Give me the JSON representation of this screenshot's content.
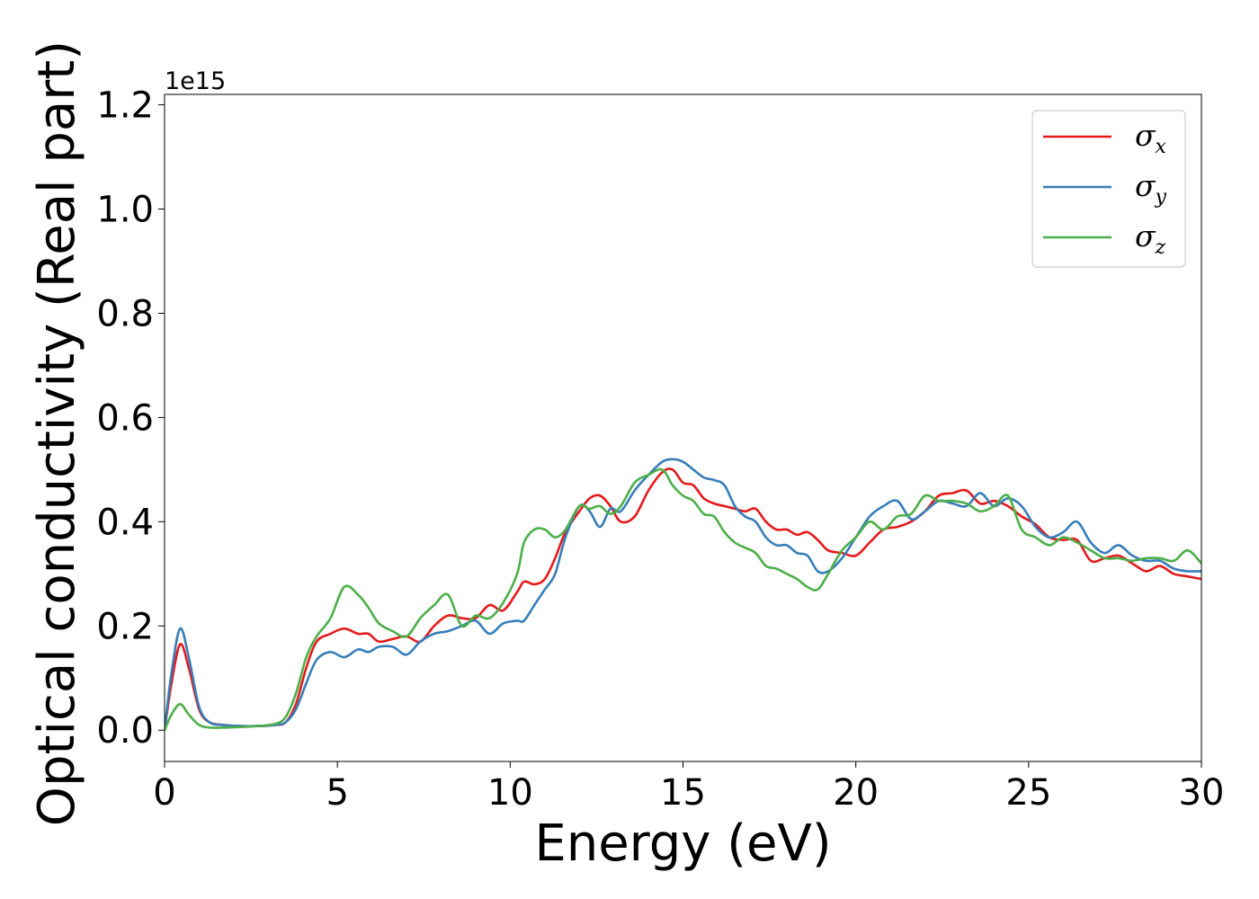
{
  "chart_data": {
    "type": "line",
    "title": "",
    "xlabel": "Energy (eV)",
    "ylabel": "Optical conductivity (Real part)",
    "y_offset_label": "1e15",
    "xlim": [
      0,
      30
    ],
    "ylim": [
      -0.06,
      1.22
    ],
    "xticks": [
      0,
      5,
      10,
      15,
      20,
      25,
      30
    ],
    "xtick_labels": [
      "0",
      "5",
      "10",
      "15",
      "20",
      "25",
      "30"
    ],
    "yticks": [
      0.0,
      0.2,
      0.4,
      0.6,
      0.8,
      1.0,
      1.2
    ],
    "ytick_labels": [
      "0.0",
      "0.2",
      "0.4",
      "0.6",
      "0.8",
      "1.0",
      "1.2"
    ],
    "grid": false,
    "legend_position": "top-right",
    "series": [
      {
        "name": "σx",
        "symbol": "σ",
        "sub": "x",
        "color": "#e41a1c",
        "x": [
          0,
          0.2,
          0.45,
          0.7,
          1.0,
          1.3,
          1.7,
          2.2,
          2.7,
          3.2,
          3.5,
          3.8,
          4.1,
          4.4,
          4.8,
          5.2,
          5.6,
          5.9,
          6.2,
          6.6,
          7.0,
          7.4,
          7.8,
          8.2,
          8.6,
          9.0,
          9.4,
          9.8,
          10.2,
          10.4,
          10.7,
          11.0,
          11.3,
          11.6,
          12.0,
          12.3,
          12.6,
          12.9,
          13.2,
          13.6,
          14.0,
          14.4,
          14.7,
          15.0,
          15.3,
          15.6,
          15.9,
          16.2,
          16.5,
          16.8,
          17.1,
          17.4,
          17.7,
          18.0,
          18.3,
          18.6,
          18.9,
          19.2,
          19.6,
          20.0,
          20.4,
          20.8,
          21.2,
          21.6,
          22.0,
          22.4,
          22.8,
          23.2,
          23.6,
          24.0,
          24.4,
          24.8,
          25.2,
          25.6,
          26.0,
          26.4,
          26.8,
          27.2,
          27.6,
          28.0,
          28.4,
          28.8,
          29.2,
          29.6,
          30.0
        ],
        "y": [
          0.0,
          0.09,
          0.165,
          0.12,
          0.04,
          0.015,
          0.01,
          0.008,
          0.008,
          0.01,
          0.015,
          0.05,
          0.12,
          0.17,
          0.185,
          0.195,
          0.185,
          0.185,
          0.17,
          0.175,
          0.18,
          0.17,
          0.2,
          0.22,
          0.215,
          0.215,
          0.24,
          0.23,
          0.265,
          0.285,
          0.28,
          0.29,
          0.33,
          0.38,
          0.42,
          0.445,
          0.45,
          0.43,
          0.4,
          0.41,
          0.46,
          0.495,
          0.5,
          0.475,
          0.47,
          0.445,
          0.435,
          0.43,
          0.425,
          0.42,
          0.425,
          0.4,
          0.385,
          0.385,
          0.375,
          0.38,
          0.365,
          0.345,
          0.34,
          0.335,
          0.36,
          0.385,
          0.39,
          0.4,
          0.42,
          0.45,
          0.455,
          0.46,
          0.435,
          0.44,
          0.43,
          0.41,
          0.395,
          0.37,
          0.365,
          0.365,
          0.325,
          0.33,
          0.335,
          0.32,
          0.305,
          0.315,
          0.3,
          0.295,
          0.29
        ]
      },
      {
        "name": "σy",
        "symbol": "σ",
        "sub": "y",
        "color": "#377eb8",
        "x": [
          0,
          0.2,
          0.45,
          0.7,
          1.0,
          1.3,
          1.7,
          2.2,
          2.7,
          3.2,
          3.5,
          3.8,
          4.1,
          4.4,
          4.8,
          5.2,
          5.6,
          5.9,
          6.2,
          6.6,
          7.0,
          7.4,
          7.8,
          8.2,
          8.6,
          9.0,
          9.4,
          9.8,
          10.2,
          10.4,
          10.7,
          11.0,
          11.3,
          11.6,
          12.0,
          12.3,
          12.6,
          12.9,
          13.2,
          13.6,
          14.0,
          14.4,
          14.7,
          15.0,
          15.3,
          15.6,
          15.9,
          16.2,
          16.5,
          16.8,
          17.1,
          17.4,
          17.7,
          18.0,
          18.3,
          18.6,
          18.9,
          19.2,
          19.6,
          20.0,
          20.4,
          20.8,
          21.2,
          21.6,
          22.0,
          22.4,
          22.8,
          23.2,
          23.6,
          24.0,
          24.4,
          24.8,
          25.2,
          25.6,
          26.0,
          26.4,
          26.8,
          27.2,
          27.6,
          28.0,
          28.4,
          28.8,
          29.2,
          29.6,
          30.0
        ],
        "y": [
          0.0,
          0.11,
          0.195,
          0.14,
          0.045,
          0.015,
          0.01,
          0.008,
          0.008,
          0.01,
          0.015,
          0.04,
          0.09,
          0.135,
          0.15,
          0.14,
          0.155,
          0.15,
          0.16,
          0.16,
          0.145,
          0.17,
          0.185,
          0.19,
          0.2,
          0.21,
          0.185,
          0.205,
          0.21,
          0.21,
          0.24,
          0.27,
          0.3,
          0.37,
          0.43,
          0.42,
          0.39,
          0.425,
          0.42,
          0.46,
          0.49,
          0.515,
          0.52,
          0.515,
          0.5,
          0.485,
          0.48,
          0.47,
          0.43,
          0.41,
          0.4,
          0.37,
          0.355,
          0.355,
          0.34,
          0.335,
          0.305,
          0.305,
          0.33,
          0.37,
          0.41,
          0.43,
          0.44,
          0.405,
          0.42,
          0.44,
          0.435,
          0.43,
          0.455,
          0.43,
          0.445,
          0.43,
          0.39,
          0.37,
          0.38,
          0.4,
          0.36,
          0.34,
          0.355,
          0.335,
          0.325,
          0.325,
          0.31,
          0.305,
          0.305
        ]
      },
      {
        "name": "σz",
        "symbol": "σ",
        "sub": "z",
        "color": "#4daf4a",
        "x": [
          0,
          0.2,
          0.45,
          0.7,
          1.0,
          1.3,
          1.7,
          2.2,
          2.7,
          3.2,
          3.5,
          3.8,
          4.1,
          4.4,
          4.8,
          5.2,
          5.6,
          5.9,
          6.2,
          6.6,
          7.0,
          7.4,
          7.8,
          8.2,
          8.6,
          9.0,
          9.4,
          9.8,
          10.2,
          10.4,
          10.7,
          11.0,
          11.3,
          11.6,
          12.0,
          12.3,
          12.6,
          12.9,
          13.2,
          13.6,
          14.0,
          14.4,
          14.7,
          15.0,
          15.3,
          15.6,
          15.9,
          16.2,
          16.5,
          16.8,
          17.1,
          17.4,
          17.7,
          18.0,
          18.3,
          18.6,
          18.9,
          19.2,
          19.6,
          20.0,
          20.4,
          20.8,
          21.2,
          21.6,
          22.0,
          22.4,
          22.8,
          23.2,
          23.6,
          24.0,
          24.4,
          24.8,
          25.2,
          25.6,
          26.0,
          26.4,
          26.8,
          27.2,
          27.6,
          28.0,
          28.4,
          28.8,
          29.2,
          29.6,
          30.0
        ],
        "y": [
          0.0,
          0.03,
          0.05,
          0.03,
          0.01,
          0.005,
          0.005,
          0.006,
          0.008,
          0.012,
          0.025,
          0.07,
          0.14,
          0.18,
          0.215,
          0.275,
          0.26,
          0.235,
          0.205,
          0.19,
          0.18,
          0.215,
          0.24,
          0.26,
          0.2,
          0.22,
          0.215,
          0.245,
          0.3,
          0.36,
          0.385,
          0.385,
          0.37,
          0.385,
          0.43,
          0.425,
          0.43,
          0.415,
          0.43,
          0.475,
          0.49,
          0.5,
          0.47,
          0.45,
          0.44,
          0.415,
          0.41,
          0.38,
          0.36,
          0.35,
          0.34,
          0.315,
          0.31,
          0.3,
          0.29,
          0.275,
          0.27,
          0.3,
          0.345,
          0.37,
          0.4,
          0.385,
          0.41,
          0.415,
          0.45,
          0.44,
          0.44,
          0.435,
          0.42,
          0.43,
          0.45,
          0.385,
          0.37,
          0.355,
          0.37,
          0.36,
          0.345,
          0.33,
          0.33,
          0.325,
          0.33,
          0.33,
          0.325,
          0.345,
          0.32
        ]
      }
    ]
  }
}
